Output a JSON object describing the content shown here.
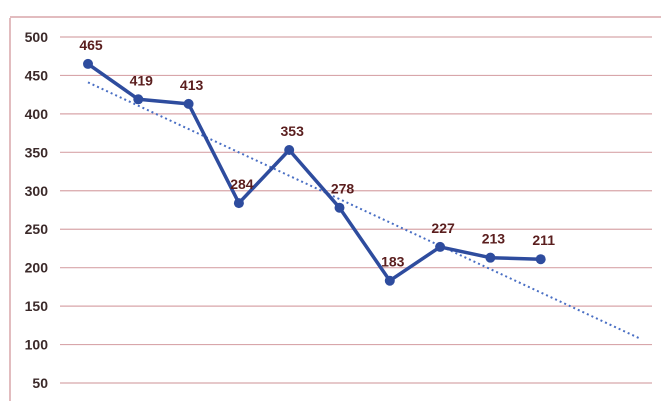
{
  "colors": {
    "gridline": "#d8a6aa",
    "frame": "#d8a6aa",
    "series_line": "#2e4c9e",
    "trendline": "#4a6fc4",
    "tick_label": "#3b2a2a",
    "data_label": "#5a1e1e",
    "background": "#ffffff"
  },
  "chart_data": {
    "type": "line",
    "title": "",
    "xlabel": "",
    "ylabel": "",
    "ylim": [
      50,
      500
    ],
    "yticks": [
      500,
      450,
      400,
      350,
      300,
      250,
      200,
      150,
      100,
      50
    ],
    "x": [
      1,
      2,
      3,
      4,
      5,
      6,
      7,
      8,
      9,
      10
    ],
    "series": [
      {
        "values": [
          465,
          419,
          413,
          284,
          353,
          278,
          183,
          227,
          213,
          211
        ],
        "data_labels": [
          "465",
          "419",
          "413",
          "284",
          "353",
          "278",
          "183",
          "227",
          "213",
          "211"
        ]
      }
    ],
    "trendline": {
      "type": "linear",
      "style": "dotted",
      "start": {
        "x": 1,
        "y": 441
      },
      "end": {
        "x": 12,
        "y": 107
      }
    },
    "grid": true,
    "legend": "none"
  }
}
